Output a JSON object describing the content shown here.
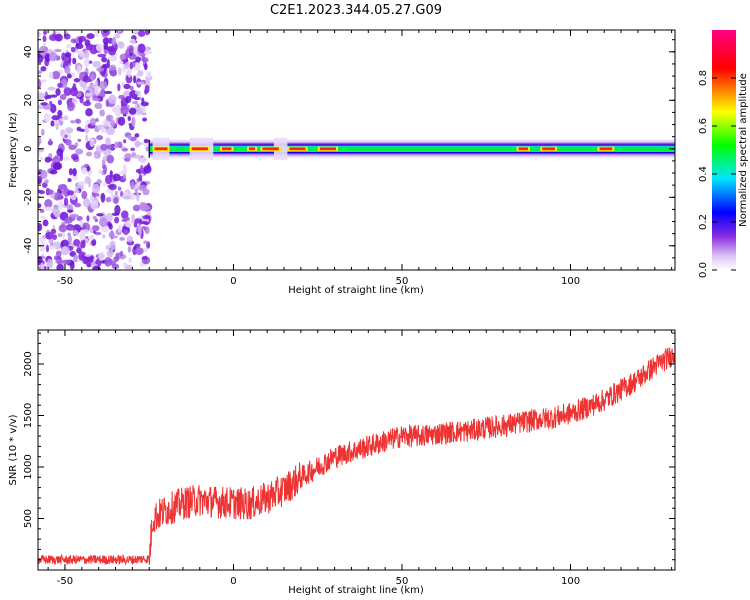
{
  "figure_title": "C2E1.2023.344.05.27.G09",
  "chart_data": [
    {
      "type": "heatmap",
      "title": "C2E1.2023.344.05.27.G09",
      "xlabel": "Height of straight line (km)",
      "ylabel": "Frequency (Hz)",
      "xlim": [
        -58,
        131
      ],
      "ylim": [
        -50,
        49
      ],
      "x_ticks": [
        -50,
        0,
        50,
        100
      ],
      "y_ticks": [
        -40,
        -20,
        0,
        20,
        40
      ],
      "colorbar": {
        "label": "Normalized spectral amplitude",
        "range": [
          0.0,
          1.0
        ],
        "ticks": [
          0.0,
          0.2,
          0.4,
          0.6,
          0.8
        ],
        "colormap": [
          "#ffffff",
          "#d9c2f5",
          "#8a2be2",
          "#0000ff",
          "#00e5ff",
          "#00ff00",
          "#ffff00",
          "#ff0000",
          "#ff0080"
        ]
      },
      "regions": [
        {
          "x_range": [
            -58,
            -25
          ],
          "description_value": "scattered noise",
          "freq_range": [
            -50,
            49
          ],
          "amplitude": 0.1
        },
        {
          "x_range": [
            -25,
            131
          ],
          "freq_center": 0,
          "freq_halfwidth": 3,
          "amplitude": 0.5
        }
      ],
      "grid": false
    },
    {
      "type": "line",
      "xlabel": "Height of straight line (km)",
      "ylabel": "SNR (10 * v/v)",
      "xlim": [
        -58,
        131
      ],
      "ylim": [
        0,
        2330
      ],
      "x_ticks": [
        -50,
        0,
        50,
        100
      ],
      "y_ticks": [
        500,
        1000,
        1500,
        2000
      ],
      "color": "#ee3333",
      "grid": false,
      "series": [
        {
          "x": [
            -58,
            -50,
            -40,
            -30,
            -25,
            -24,
            -20,
            -15,
            -10,
            -5,
            0,
            5,
            10,
            15,
            20,
            25,
            30,
            35,
            40,
            45,
            50,
            55,
            60,
            65,
            70,
            75,
            80,
            85,
            90,
            95,
            100,
            105,
            110,
            115,
            120,
            125,
            131
          ],
          "values": [
            100,
            100,
            100,
            100,
            110,
            500,
            580,
            650,
            680,
            660,
            650,
            640,
            700,
            780,
            900,
            1000,
            1100,
            1150,
            1200,
            1250,
            1300,
            1300,
            1320,
            1340,
            1350,
            1380,
            1400,
            1430,
            1460,
            1480,
            1520,
            1580,
            1650,
            1750,
            1850,
            1980,
            2100
          ]
        }
      ]
    }
  ]
}
